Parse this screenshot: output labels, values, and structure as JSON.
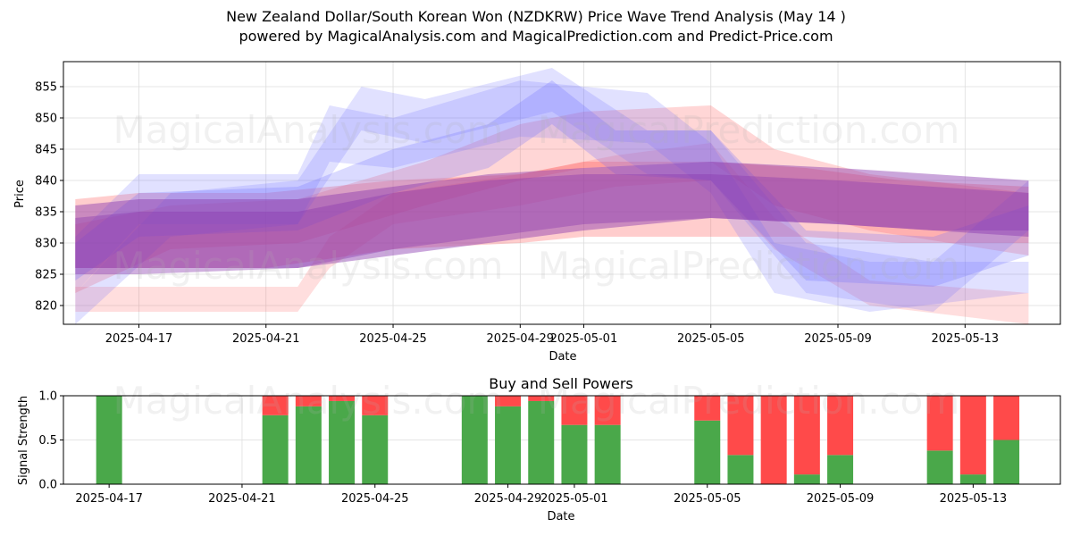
{
  "title": {
    "line1": "New Zealand Dollar/South Korean Won (NZDKRW) Price Wave Trend Analysis (May 14 )",
    "line2": "powered by MagicalAnalysis.com and MagicalPrediction.com and Predict-Price.com"
  },
  "watermarks": {
    "analysis": "MagicalAnalysis.com",
    "prediction": "MagicalPrediction.com"
  },
  "colors": {
    "buy": "#4aa84a",
    "sell": "#ff4a4a",
    "band_red": "#ff5a5a",
    "band_blue": "#6a6aff",
    "band_purple": "#8a3ab0"
  },
  "chart_data": [
    {
      "type": "area",
      "title": "",
      "xlabel": "Date",
      "ylabel": "Price",
      "xlim": [
        "2025-04-14T15:00",
        "2025-05-16T00:00"
      ],
      "ylim": [
        817,
        859
      ],
      "yticks": [
        820,
        825,
        830,
        835,
        840,
        845,
        850,
        855
      ],
      "xticks": [
        "2025-04-17",
        "2025-04-21",
        "2025-04-25",
        "2025-04-29",
        "2025-05-01",
        "2025-05-05",
        "2025-05-09",
        "2025-05-13"
      ],
      "grid": true,
      "series": [
        {
          "name": "red-band-1",
          "color": "red",
          "opacity": 0.3,
          "x": [
            "2025-04-15",
            "2025-04-17",
            "2025-04-21",
            "2025-04-25",
            "2025-04-29",
            "2025-05-01",
            "2025-05-05",
            "2025-05-08",
            "2025-05-11",
            "2025-05-15"
          ],
          "upper": [
            837,
            838,
            838,
            840,
            841,
            843,
            843,
            842,
            840,
            839
          ],
          "lower": [
            826,
            826,
            826,
            829,
            830,
            831,
            831,
            831,
            830,
            830
          ]
        },
        {
          "name": "red-band-2",
          "color": "red",
          "opacity": 0.25,
          "x": [
            "2025-04-15",
            "2025-04-18",
            "2025-04-22",
            "2025-04-26",
            "2025-04-29",
            "2025-05-01",
            "2025-05-05",
            "2025-05-07",
            "2025-05-10",
            "2025-05-15"
          ],
          "upper": [
            833,
            836,
            837,
            843,
            849,
            851,
            852,
            845,
            841,
            838
          ],
          "lower": [
            822,
            829,
            830,
            836,
            840,
            842,
            843,
            836,
            832,
            828
          ]
        },
        {
          "name": "red-band-3",
          "color": "red",
          "opacity": 0.2,
          "x": [
            "2025-04-15",
            "2025-04-22",
            "2025-04-23",
            "2025-04-25",
            "2025-04-29",
            "2025-05-02",
            "2025-05-05",
            "2025-05-07",
            "2025-05-10",
            "2025-05-15"
          ],
          "upper": [
            823,
            823,
            831,
            838,
            841,
            844,
            846,
            834,
            824,
            822
          ],
          "lower": [
            819,
            819,
            826,
            833,
            836,
            839,
            840,
            829,
            820,
            817
          ]
        },
        {
          "name": "blue-band-1",
          "color": "blue",
          "opacity": 0.2,
          "x": [
            "2025-04-15",
            "2025-04-17",
            "2025-04-22",
            "2025-04-23",
            "2025-04-25",
            "2025-04-29",
            "2025-05-03",
            "2025-05-05",
            "2025-05-07",
            "2025-05-10",
            "2025-05-15"
          ],
          "upper": [
            831,
            841,
            841,
            852,
            850,
            856,
            854,
            846,
            830,
            827,
            827
          ],
          "lower": [
            822,
            833,
            833,
            843,
            842,
            847,
            846,
            838,
            822,
            819,
            822
          ]
        },
        {
          "name": "blue-band-2",
          "color": "blue",
          "opacity": 0.2,
          "x": [
            "2025-04-15",
            "2025-04-18",
            "2025-04-22",
            "2025-04-24",
            "2025-04-26",
            "2025-04-30",
            "2025-05-03",
            "2025-05-05",
            "2025-05-08",
            "2025-05-12",
            "2025-05-15"
          ],
          "upper": [
            822,
            838,
            840,
            855,
            853,
            858,
            848,
            848,
            830,
            827,
            840
          ],
          "lower": [
            817,
            831,
            833,
            848,
            846,
            851,
            841,
            840,
            822,
            819,
            832
          ]
        },
        {
          "name": "blue-band-3",
          "color": "blue",
          "opacity": 0.25,
          "x": [
            "2025-04-15",
            "2025-04-17",
            "2025-04-22",
            "2025-04-25",
            "2025-04-28",
            "2025-04-30",
            "2025-05-02",
            "2025-05-05",
            "2025-05-08",
            "2025-05-12",
            "2025-05-15"
          ],
          "upper": [
            830,
            838,
            839,
            845,
            849,
            856,
            848,
            848,
            832,
            831,
            836
          ],
          "lower": [
            824,
            831,
            832,
            838,
            842,
            849,
            841,
            840,
            824,
            823,
            828
          ]
        },
        {
          "name": "purple-band-1",
          "color": "purple",
          "opacity": 0.45,
          "x": [
            "2025-04-15",
            "2025-04-17",
            "2025-04-22",
            "2025-04-25",
            "2025-04-28",
            "2025-05-01",
            "2025-05-05",
            "2025-05-09",
            "2025-05-12",
            "2025-05-15"
          ],
          "upper": [
            836,
            837,
            837,
            839,
            841,
            842,
            843,
            842,
            841,
            840
          ],
          "lower": [
            826,
            826,
            826,
            828,
            830,
            832,
            834,
            833,
            832,
            831
          ]
        },
        {
          "name": "purple-band-2",
          "color": "purple",
          "opacity": 0.4,
          "x": [
            "2025-04-15",
            "2025-04-17",
            "2025-04-22",
            "2025-04-25",
            "2025-04-28",
            "2025-05-01",
            "2025-05-05",
            "2025-05-09",
            "2025-05-12",
            "2025-05-15"
          ],
          "upper": [
            834,
            835,
            835,
            838,
            840,
            841,
            841,
            840,
            839,
            838
          ],
          "lower": [
            825,
            825,
            826,
            829,
            831,
            833,
            834,
            833,
            832,
            832
          ]
        }
      ]
    },
    {
      "type": "bar",
      "title": "Buy and Sell Powers",
      "xlabel": "Date",
      "ylabel": "Signal Strength",
      "ylim": [
        0,
        1.0
      ],
      "yticks": [
        0.0,
        0.5,
        1.0
      ],
      "xticks": [
        "2025-04-17",
        "2025-04-21",
        "2025-04-25",
        "2025-04-29",
        "2025-05-01",
        "2025-05-05",
        "2025-05-09",
        "2025-05-13"
      ],
      "grid": true,
      "categories": [
        "2025-04-17",
        "2025-04-22",
        "2025-04-23",
        "2025-04-24",
        "2025-04-25",
        "2025-04-28",
        "2025-04-29",
        "2025-04-30",
        "2025-05-01",
        "2025-05-02",
        "2025-05-05",
        "2025-05-06",
        "2025-05-07",
        "2025-05-08",
        "2025-05-09",
        "2025-05-12",
        "2025-05-13",
        "2025-05-14"
      ],
      "series": [
        {
          "name": "Buy",
          "values": [
            1.0,
            0.78,
            0.88,
            0.94,
            0.78,
            1.0,
            0.88,
            0.94,
            0.67,
            0.67,
            0.72,
            0.33,
            0.0,
            0.11,
            0.33,
            0.38,
            0.11,
            0.5
          ]
        },
        {
          "name": "Sell",
          "values": [
            0.0,
            0.22,
            0.12,
            0.06,
            0.22,
            0.0,
            0.12,
            0.06,
            0.33,
            0.33,
            0.28,
            0.67,
            1.0,
            0.89,
            0.67,
            0.62,
            0.89,
            0.5
          ]
        }
      ]
    }
  ]
}
